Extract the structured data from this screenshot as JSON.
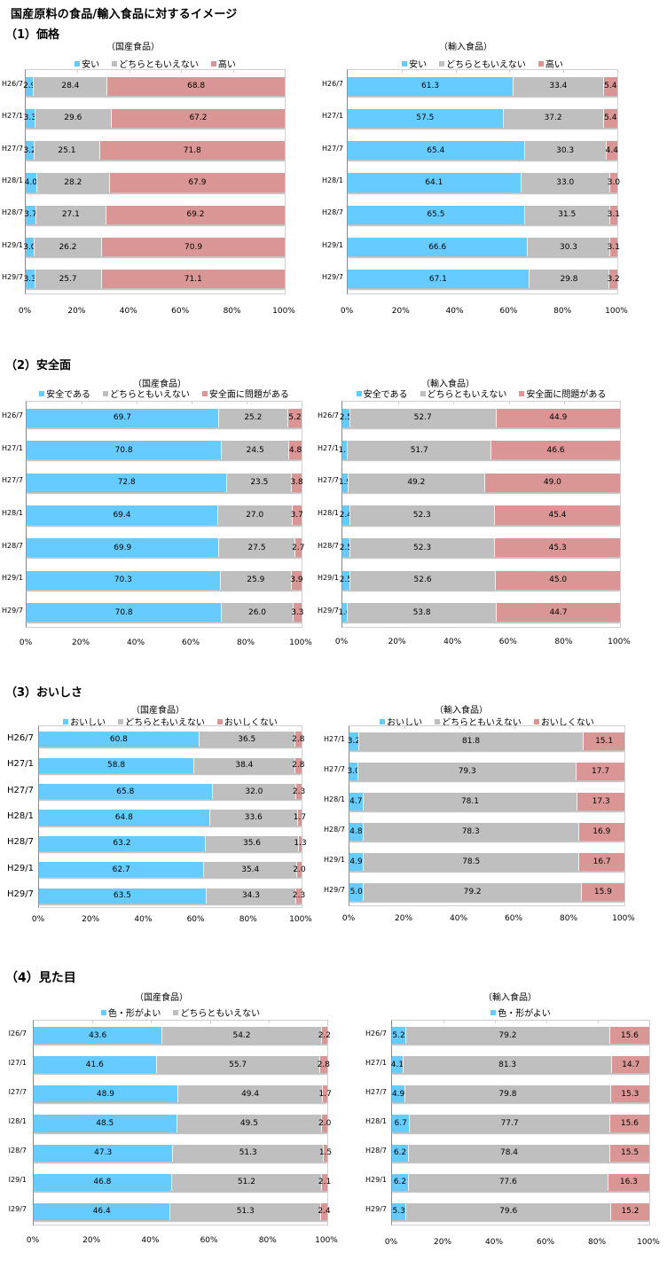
{
  "page": {
    "title": "国産原料の食品/輸入食品に対するイメージ"
  },
  "colors": {
    "positive": "#66CCFF",
    "neutral": "#BFBFBF",
    "negative": "#D99694"
  },
  "sections": [
    {
      "title": "（1）価格"
    },
    {
      "title": "（2）安全面"
    },
    {
      "title": "（3）おいしさ"
    },
    {
      "title": "（4）見た目"
    }
  ],
  "chart_data": [
    {
      "id": "price-domestic",
      "type": "bar",
      "orientation": "horizontal-stacked-100",
      "title": "（国産食品）",
      "categories": [
        "H26/7",
        "H27/1",
        "H27/7",
        "H28/1",
        "H28/7",
        "H29/1",
        "H29/7"
      ],
      "series": [
        {
          "name": "安い",
          "color": "#66CCFF",
          "values": [
            2.9,
            3.3,
            3.2,
            4.0,
            3.7,
            3.0,
            3.3
          ]
        },
        {
          "name": "どちらともいえない",
          "color": "#BFBFBF",
          "values": [
            28.4,
            29.6,
            25.1,
            28.2,
            27.1,
            26.2,
            25.7
          ]
        },
        {
          "name": "高い",
          "color": "#D99694",
          "values": [
            68.8,
            67.2,
            71.8,
            67.9,
            69.2,
            70.9,
            71.1
          ]
        }
      ],
      "legend": [
        "安い",
        "どちらともいえない",
        "高い"
      ],
      "xticks": [
        "0%",
        "20%",
        "40%",
        "60%",
        "80%",
        "100%"
      ],
      "xlim": [
        0,
        100
      ],
      "legend_position": "top"
    },
    {
      "id": "price-imported",
      "type": "bar",
      "orientation": "horizontal-stacked-100",
      "title": "（輸入食品）",
      "categories": [
        "H26/7",
        "H27/1",
        "H27/7",
        "H28/1",
        "H28/7",
        "H29/1",
        "H29/7"
      ],
      "series": [
        {
          "name": "安い",
          "color": "#66CCFF",
          "values": [
            61.3,
            57.5,
            65.4,
            64.1,
            65.5,
            66.6,
            67.1
          ]
        },
        {
          "name": "どちらともいえない",
          "color": "#BFBFBF",
          "values": [
            33.4,
            37.2,
            30.3,
            33.0,
            31.5,
            30.3,
            29.8
          ]
        },
        {
          "name": "高い",
          "color": "#D99694",
          "values": [
            5.4,
            5.4,
            4.4,
            3.0,
            3.1,
            3.1,
            3.2
          ]
        }
      ],
      "legend": [
        "安い",
        "どちらともいえない",
        "高い"
      ],
      "xticks": [
        "0%",
        "20%",
        "40%",
        "60%",
        "80%",
        "100%"
      ],
      "xlim": [
        0,
        100
      ],
      "legend_position": "top"
    },
    {
      "id": "safety-domestic",
      "type": "bar",
      "orientation": "horizontal-stacked-100",
      "title": "（国産食品）",
      "categories": [
        "H26/7",
        "H27/1",
        "H27/7",
        "H28/1",
        "H28/7",
        "H29/1",
        "H29/7"
      ],
      "series": [
        {
          "name": "安全である",
          "color": "#66CCFF",
          "values": [
            69.7,
            70.8,
            72.8,
            69.4,
            69.9,
            70.3,
            70.8
          ]
        },
        {
          "name": "どちらともいえない",
          "color": "#BFBFBF",
          "values": [
            25.2,
            24.5,
            23.5,
            27.0,
            27.5,
            25.9,
            26.0
          ]
        },
        {
          "name": "安全面に問題がある",
          "color": "#D99694",
          "values": [
            5.2,
            4.8,
            3.8,
            3.7,
            2.7,
            3.9,
            3.3
          ]
        }
      ],
      "legend": [
        "安全である",
        "どちらともいえない",
        "安全面に問題がある"
      ],
      "xticks": [
        "0%",
        "20%",
        "40%",
        "60%",
        "80%",
        "100%"
      ],
      "xlim": [
        0,
        100
      ],
      "legend_position": "top"
    },
    {
      "id": "safety-imported",
      "type": "bar",
      "orientation": "horizontal-stacked-100",
      "title": "（輸入食品）",
      "categories": [
        "H26/7",
        "H27/1",
        "H27/7",
        "H28/1",
        "H28/7",
        "H29/1",
        "H29/7"
      ],
      "series": [
        {
          "name": "安全である",
          "color": "#66CCFF",
          "values": [
            2.5,
            1.7,
            1.9,
            2.4,
            2.5,
            2.5,
            1.6
          ]
        },
        {
          "name": "どちらともいえない",
          "color": "#BFBFBF",
          "values": [
            52.7,
            51.7,
            49.2,
            52.3,
            52.3,
            52.6,
            53.8
          ]
        },
        {
          "name": "安全面に問題がある",
          "color": "#D99694",
          "values": [
            44.9,
            46.6,
            49.0,
            45.4,
            45.3,
            45.0,
            44.7
          ]
        }
      ],
      "legend": [
        "安全である",
        "どちらともいえない",
        "安全面に問題がある"
      ],
      "xticks": [
        "0%",
        "20%",
        "40%",
        "60%",
        "80%",
        "100%"
      ],
      "xlim": [
        0,
        100
      ],
      "legend_position": "top"
    },
    {
      "id": "taste-domestic",
      "type": "bar",
      "orientation": "horizontal-stacked-100",
      "title": "（国産食品）",
      "categories": [
        "H26/7",
        "H27/1",
        "H27/7",
        "H28/1",
        "H28/7",
        "H29/1",
        "H29/7"
      ],
      "series": [
        {
          "name": "おいしい",
          "color": "#66CCFF",
          "values": [
            60.8,
            58.8,
            65.8,
            64.8,
            63.2,
            62.7,
            63.5
          ]
        },
        {
          "name": "どちらともいえない",
          "color": "#BFBFBF",
          "values": [
            36.5,
            38.4,
            32.0,
            33.6,
            35.6,
            35.4,
            34.3
          ]
        },
        {
          "name": "おいしくない",
          "color": "#D99694",
          "values": [
            2.8,
            2.8,
            2.3,
            1.7,
            1.3,
            2.0,
            2.3
          ]
        }
      ],
      "legend": [
        "おいしい",
        "どちらともいえない",
        "おいしくない"
      ],
      "xticks": [
        "0%",
        "20%",
        "40%",
        "60%",
        "80%",
        "100%"
      ],
      "xlim": [
        0,
        100
      ],
      "legend_position": "top"
    },
    {
      "id": "taste-imported",
      "type": "bar",
      "orientation": "horizontal-stacked-100",
      "title": "（輸入食品）",
      "categories": [
        "H27/1",
        "H27/7",
        "H28/1",
        "H28/7",
        "H29/1",
        "H29/7"
      ],
      "series": [
        {
          "name": "おいしい",
          "color": "#66CCFF",
          "values": [
            3.2,
            3.0,
            4.7,
            4.8,
            4.9,
            5.0
          ]
        },
        {
          "name": "どちらともいえない",
          "color": "#BFBFBF",
          "values": [
            81.8,
            79.3,
            78.1,
            78.3,
            78.5,
            79.2
          ]
        },
        {
          "name": "おいしくない",
          "color": "#D99694",
          "values": [
            15.1,
            17.7,
            17.3,
            16.9,
            16.7,
            15.9
          ]
        }
      ],
      "legend": [
        "おいしい",
        "どちらともいえない",
        "おいしくない"
      ],
      "xticks": [
        "0%",
        "20%",
        "40%",
        "60%",
        "80%",
        "100%"
      ],
      "xlim": [
        0,
        100
      ],
      "legend_position": "top"
    },
    {
      "id": "appearance-domestic",
      "type": "bar",
      "orientation": "horizontal-stacked-100",
      "title": "（国産食品）",
      "categories": [
        "I26/7",
        "I27/1",
        "I27/7",
        "I28/1",
        "I28/7",
        "I29/1",
        "I29/7"
      ],
      "series": [
        {
          "name": "色・形がよい",
          "color": "#66CCFF",
          "values": [
            43.6,
            41.6,
            48.9,
            48.5,
            47.3,
            46.8,
            46.4
          ]
        },
        {
          "name": "どちらともいえない",
          "color": "#BFBFBF",
          "values": [
            54.2,
            55.7,
            49.4,
            49.5,
            51.3,
            51.2,
            51.3
          ]
        },
        {
          "name": "",
          "color": "#D99694",
          "values": [
            2.2,
            2.8,
            1.7,
            2.0,
            1.5,
            2.1,
            2.4
          ]
        }
      ],
      "legend": [
        "色・形がよい",
        "どちらともいえない"
      ],
      "xticks": [
        "0%",
        "20%",
        "40%",
        "60%",
        "80%",
        "100%"
      ],
      "xlim": [
        0,
        100
      ],
      "legend_position": "top"
    },
    {
      "id": "appearance-imported",
      "type": "bar",
      "orientation": "horizontal-stacked-100",
      "title": "（輸入食品）",
      "categories": [
        "H26/7",
        "H27/1",
        "H27/7",
        "H28/1",
        "H28/7",
        "H29/1",
        "H29/7"
      ],
      "series": [
        {
          "name": "色・形がよい",
          "color": "#66CCFF",
          "values": [
            5.2,
            4.1,
            4.9,
            6.7,
            6.2,
            6.2,
            5.3
          ]
        },
        {
          "name": "",
          "color": "#BFBFBF",
          "values": [
            79.2,
            81.3,
            79.8,
            77.7,
            78.4,
            77.6,
            79.6
          ]
        },
        {
          "name": "",
          "color": "#D99694",
          "values": [
            15.6,
            14.7,
            15.3,
            15.6,
            15.5,
            16.3,
            15.2
          ]
        }
      ],
      "legend": [
        "色・形がよい"
      ],
      "xticks": [
        "0%",
        "20%",
        "40%",
        "60%",
        "80%",
        "100%"
      ],
      "xlim": [
        0,
        100
      ],
      "legend_position": "top"
    }
  ]
}
